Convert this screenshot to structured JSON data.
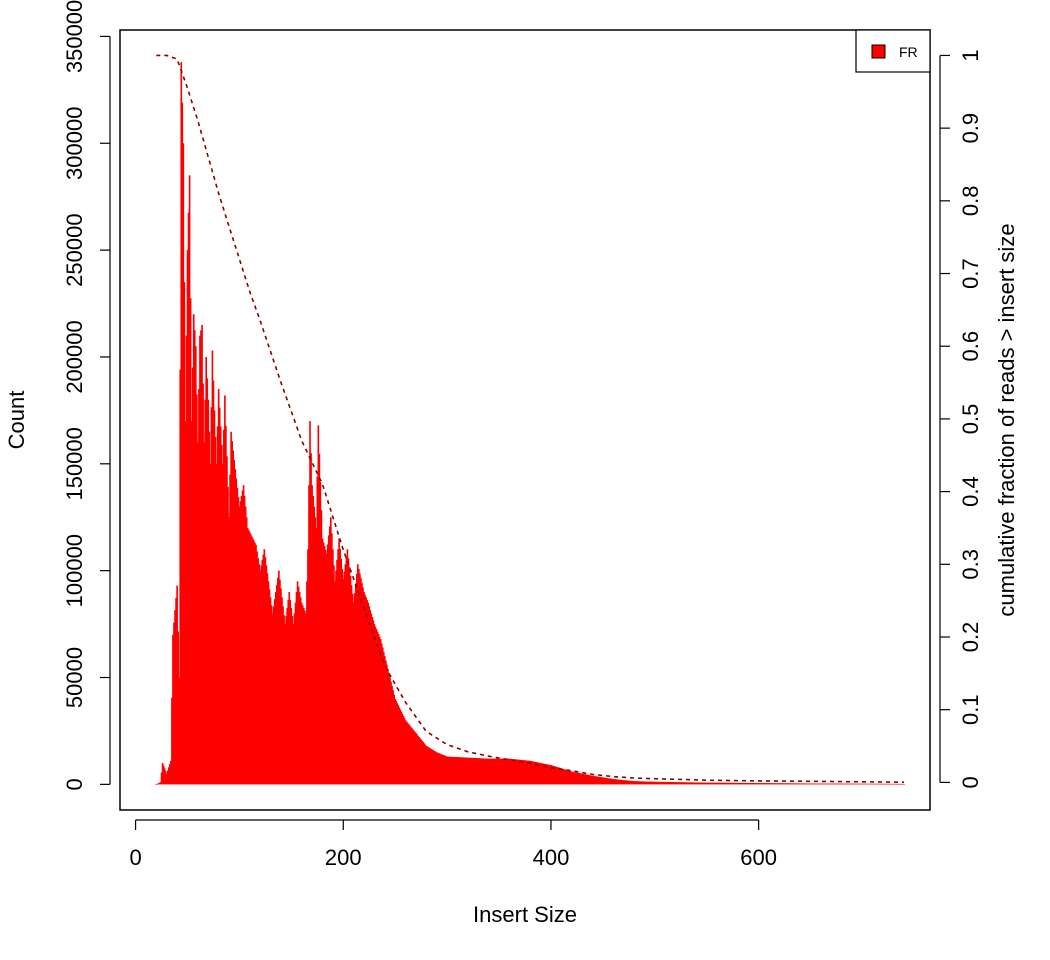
{
  "chart_data": {
    "type": "bar",
    "title": "",
    "xlabel": "Insert Size",
    "ylabel": "Count",
    "y2label": "cumulative fraction of reads > insert size",
    "xlim": [
      -15,
      765
    ],
    "ylim": [
      -12000,
      353000
    ],
    "y2lim": [
      -0.038,
      1.035
    ],
    "x_ticks": [
      0,
      200,
      400,
      600
    ],
    "y_ticks": [
      0,
      50000,
      100000,
      150000,
      200000,
      250000,
      300000,
      350000
    ],
    "y2_ticks": [
      0,
      0.1,
      0.2,
      0.3,
      0.4,
      0.5,
      0.6,
      0.7,
      0.8,
      0.9,
      1
    ],
    "y2_tick_labels": [
      "0",
      "0.1",
      "0.2",
      "0.3",
      "0.4",
      "0.5",
      "0.6",
      "0.7",
      "0.8",
      "0.9",
      "1"
    ],
    "legend": {
      "position": "top-right",
      "entries": [
        "FR"
      ]
    },
    "colors": {
      "bars": "#ff0000",
      "cumulative_line": "#8b0000",
      "axis": "#000000"
    },
    "series": [
      {
        "name": "FR",
        "kind": "histogram",
        "x_start": 20,
        "x_end": 740,
        "x_step": 1,
        "control_points": [
          [
            20,
            0
          ],
          [
            24,
            1000
          ],
          [
            26,
            10000
          ],
          [
            30,
            5000
          ],
          [
            34,
            11000
          ],
          [
            36,
            70000
          ],
          [
            40,
            93000
          ],
          [
            42,
            50000
          ],
          [
            44,
            338000
          ],
          [
            46,
            300000
          ],
          [
            48,
            170000
          ],
          [
            50,
            250000
          ],
          [
            52,
            285000
          ],
          [
            54,
            170000
          ],
          [
            56,
            220000
          ],
          [
            58,
            205000
          ],
          [
            60,
            160000
          ],
          [
            62,
            210000
          ],
          [
            64,
            215000
          ],
          [
            66,
            160000
          ],
          [
            68,
            200000
          ],
          [
            70,
            180000
          ],
          [
            72,
            150000
          ],
          [
            74,
            203000
          ],
          [
            76,
            175000
          ],
          [
            78,
            150000
          ],
          [
            80,
            185000
          ],
          [
            84,
            150000
          ],
          [
            86,
            182000
          ],
          [
            90,
            125000
          ],
          [
            92,
            165000
          ],
          [
            100,
            130000
          ],
          [
            104,
            140000
          ],
          [
            108,
            120000
          ],
          [
            116,
            112000
          ],
          [
            120,
            100000
          ],
          [
            124,
            110000
          ],
          [
            132,
            80000
          ],
          [
            138,
            100000
          ],
          [
            144,
            75000
          ],
          [
            148,
            90000
          ],
          [
            152,
            75000
          ],
          [
            156,
            95000
          ],
          [
            160,
            85000
          ],
          [
            164,
            80000
          ],
          [
            166,
            110000
          ],
          [
            168,
            170000
          ],
          [
            170,
            140000
          ],
          [
            174,
            120000
          ],
          [
            176,
            168000
          ],
          [
            180,
            115000
          ],
          [
            184,
            108000
          ],
          [
            188,
            125000
          ],
          [
            192,
            95000
          ],
          [
            196,
            115000
          ],
          [
            200,
            96000
          ],
          [
            204,
            110000
          ],
          [
            210,
            85000
          ],
          [
            214,
            103000
          ],
          [
            220,
            90000
          ],
          [
            224,
            85000
          ],
          [
            230,
            75000
          ],
          [
            236,
            68000
          ],
          [
            240,
            60000
          ],
          [
            246,
            48000
          ],
          [
            250,
            40000
          ],
          [
            260,
            30000
          ],
          [
            270,
            24000
          ],
          [
            280,
            18000
          ],
          [
            290,
            15000
          ],
          [
            300,
            13000
          ],
          [
            320,
            12500
          ],
          [
            340,
            12000
          ],
          [
            360,
            12000
          ],
          [
            380,
            11000
          ],
          [
            400,
            9000
          ],
          [
            420,
            6000
          ],
          [
            440,
            4000
          ],
          [
            460,
            2500
          ],
          [
            480,
            1500
          ],
          [
            500,
            1200
          ],
          [
            550,
            800
          ],
          [
            600,
            600
          ],
          [
            650,
            400
          ],
          [
            700,
            300
          ],
          [
            740,
            200
          ]
        ]
      }
    ],
    "cumulative": {
      "x": [
        20,
        30,
        40,
        45,
        50,
        60,
        70,
        80,
        90,
        100,
        110,
        120,
        140,
        160,
        180,
        200,
        220,
        240,
        260,
        280,
        300,
        320,
        340,
        360,
        380,
        400,
        420,
        440,
        460,
        480,
        500,
        550,
        600,
        650,
        700,
        740
      ],
      "y": [
        1.0,
        1.0,
        0.995,
        0.975,
        0.955,
        0.91,
        0.86,
        0.81,
        0.765,
        0.72,
        0.675,
        0.635,
        0.55,
        0.47,
        0.41,
        0.32,
        0.24,
        0.16,
        0.11,
        0.07,
        0.052,
        0.042,
        0.036,
        0.031,
        0.026,
        0.02,
        0.016,
        0.011,
        0.008,
        0.006,
        0.005,
        0.003,
        0.002,
        0.0015,
        0.0008,
        0.0003
      ]
    }
  }
}
